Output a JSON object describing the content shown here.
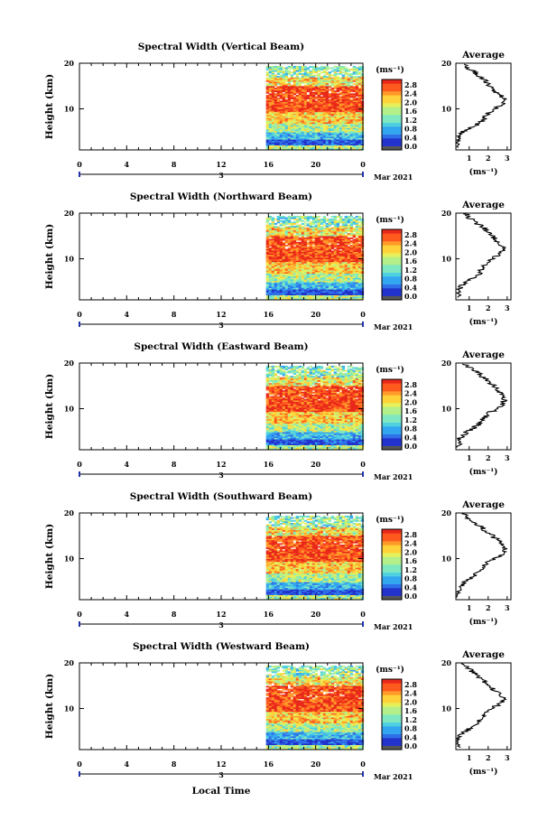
{
  "chart_data": [
    {
      "type": "heatmap",
      "title": "Spectral Width (Vertical Beam)",
      "ylabel": "Height (km)",
      "xticks": [
        "0",
        "4",
        "8",
        "12",
        "16",
        "20",
        "0"
      ],
      "yticks": [
        "10",
        "20"
      ],
      "ylim": [
        1,
        20
      ],
      "date_label": "3",
      "month_label": "Mar 2021",
      "colorbar_unit": "(ms⁻¹)",
      "colorbar_ticks": [
        "0.0",
        "0.4",
        "0.8",
        "1.2",
        "1.6",
        "2.0",
        "2.4",
        "2.8"
      ],
      "data_start_hour": 15.8,
      "data_end_hour": 24,
      "average": {
        "title": "Average",
        "xticks": [
          "1",
          "2",
          "3"
        ],
        "xlabel": "(ms⁻¹)",
        "yticks": [
          "10",
          "20"
        ],
        "x_at_height": [
          [
            1.5,
            0.45
          ],
          [
            3,
            0.42
          ],
          [
            4,
            0.5
          ],
          [
            5,
            0.7
          ],
          [
            6,
            1.2
          ],
          [
            7,
            1.6
          ],
          [
            8,
            1.8
          ],
          [
            9,
            2.0
          ],
          [
            10,
            2.3
          ],
          [
            11,
            2.7
          ],
          [
            12,
            2.9
          ],
          [
            13,
            2.6
          ],
          [
            14,
            2.3
          ],
          [
            15,
            2.1
          ],
          [
            16,
            1.9
          ],
          [
            17,
            1.6
          ],
          [
            18,
            1.3
          ],
          [
            19,
            0.9
          ],
          [
            20,
            0.7
          ]
        ]
      }
    },
    {
      "type": "heatmap",
      "title": "Spectral Width (Northward Beam)",
      "ylabel": "Height (km)",
      "xticks": [
        "0",
        "4",
        "8",
        "12",
        "16",
        "20",
        "0"
      ],
      "yticks": [
        "10",
        "20"
      ],
      "ylim": [
        1,
        20
      ],
      "date_label": "3",
      "month_label": "Mar 2021",
      "colorbar_unit": "(ms⁻¹)",
      "colorbar_ticks": [
        "0.0",
        "0.4",
        "0.8",
        "1.2",
        "1.6",
        "2.0",
        "2.4",
        "2.8"
      ],
      "data_start_hour": 15.8,
      "data_end_hour": 24,
      "average": {
        "title": "Average",
        "xticks": [
          "1",
          "2",
          "3"
        ],
        "xlabel": "(ms⁻¹)",
        "yticks": [
          "10",
          "20"
        ],
        "x_at_height": [
          [
            1.5,
            0.4
          ],
          [
            3,
            0.45
          ],
          [
            4,
            0.55
          ],
          [
            5,
            0.8
          ],
          [
            6,
            1.3
          ],
          [
            7,
            1.6
          ],
          [
            8,
            1.7
          ],
          [
            9,
            1.8
          ],
          [
            10,
            2.2
          ],
          [
            11,
            2.6
          ],
          [
            12,
            2.8
          ],
          [
            13,
            2.7
          ],
          [
            14,
            2.4
          ],
          [
            15,
            2.2
          ],
          [
            16,
            2.0
          ],
          [
            17,
            1.7
          ],
          [
            18,
            1.3
          ],
          [
            19,
            1.0
          ],
          [
            20,
            0.8
          ]
        ]
      }
    },
    {
      "type": "heatmap",
      "title": "Spectral Width (Eastward Beam)",
      "ylabel": "Height (km)",
      "xticks": [
        "0",
        "4",
        "8",
        "12",
        "16",
        "20",
        "0"
      ],
      "yticks": [
        "10",
        "20"
      ],
      "ylim": [
        1,
        20
      ],
      "date_label": "3",
      "month_label": "Mar 2021",
      "colorbar_unit": "(ms⁻¹)",
      "colorbar_ticks": [
        "0.0",
        "0.4",
        "0.8",
        "1.2",
        "1.6",
        "2.0",
        "2.4",
        "2.8"
      ],
      "data_start_hour": 15.8,
      "data_end_hour": 24,
      "average": {
        "title": "Average",
        "xticks": [
          "1",
          "2",
          "3"
        ],
        "xlabel": "(ms⁻¹)",
        "yticks": [
          "10",
          "20"
        ],
        "x_at_height": [
          [
            1.5,
            0.5
          ],
          [
            3,
            0.45
          ],
          [
            4,
            0.6
          ],
          [
            5,
            0.9
          ],
          [
            6,
            1.3
          ],
          [
            7,
            1.6
          ],
          [
            8,
            1.8
          ],
          [
            9,
            2.0
          ],
          [
            10,
            2.5
          ],
          [
            11,
            2.8
          ],
          [
            12,
            2.9
          ],
          [
            13,
            2.7
          ],
          [
            14,
            2.5
          ],
          [
            15,
            2.3
          ],
          [
            16,
            2.0
          ],
          [
            17,
            1.7
          ],
          [
            18,
            1.4
          ],
          [
            19,
            1.0
          ],
          [
            20,
            0.7
          ]
        ]
      }
    },
    {
      "type": "heatmap",
      "title": "Spectral Width (Southward Beam)",
      "ylabel": "Height (km)",
      "xticks": [
        "0",
        "4",
        "8",
        "12",
        "16",
        "20",
        "0"
      ],
      "yticks": [
        "10",
        "20"
      ],
      "ylim": [
        1,
        20
      ],
      "date_label": "3",
      "month_label": "Mar 2021",
      "colorbar_unit": "(ms⁻¹)",
      "colorbar_ticks": [
        "0.0",
        "0.4",
        "0.8",
        "1.2",
        "1.6",
        "2.0",
        "2.4",
        "2.8"
      ],
      "data_start_hour": 15.8,
      "data_end_hour": 24,
      "average": {
        "title": "Average",
        "xticks": [
          "1",
          "2",
          "3"
        ],
        "xlabel": "(ms⁻¹)",
        "yticks": [
          "10",
          "20"
        ],
        "x_at_height": [
          [
            1.5,
            0.4
          ],
          [
            3,
            0.45
          ],
          [
            4,
            0.55
          ],
          [
            5,
            0.8
          ],
          [
            6,
            1.2
          ],
          [
            7,
            1.5
          ],
          [
            8,
            1.7
          ],
          [
            9,
            1.9
          ],
          [
            10,
            2.3
          ],
          [
            11,
            2.7
          ],
          [
            12,
            2.9
          ],
          [
            13,
            2.8
          ],
          [
            14,
            2.5
          ],
          [
            15,
            2.2
          ],
          [
            16,
            1.9
          ],
          [
            17,
            1.6
          ],
          [
            18,
            1.2
          ],
          [
            19,
            0.9
          ],
          [
            20,
            0.6
          ]
        ]
      }
    },
    {
      "type": "heatmap",
      "title": "Spectral Width (Westward Beam)",
      "ylabel": "Height (km)",
      "xticks": [
        "0",
        "4",
        "8",
        "12",
        "16",
        "20",
        "0"
      ],
      "yticks": [
        "10",
        "20"
      ],
      "ylim": [
        1,
        20
      ],
      "date_label": "3",
      "month_label": "Mar 2021",
      "colorbar_unit": "(ms⁻¹)",
      "colorbar_ticks": [
        "0.0",
        "0.4",
        "0.8",
        "1.2",
        "1.6",
        "2.0",
        "2.4",
        "2.8"
      ],
      "data_start_hour": 15.8,
      "data_end_hour": 24,
      "average": {
        "title": "Average",
        "xticks": [
          "1",
          "2",
          "3"
        ],
        "xlabel": "(ms⁻¹)",
        "yticks": [
          "10",
          "20"
        ],
        "x_at_height": [
          [
            1.5,
            0.45
          ],
          [
            3,
            0.42
          ],
          [
            4,
            0.55
          ],
          [
            5,
            0.8
          ],
          [
            6,
            1.2
          ],
          [
            7,
            1.5
          ],
          [
            8,
            1.7
          ],
          [
            9,
            1.9
          ],
          [
            10,
            2.2
          ],
          [
            11,
            2.6
          ],
          [
            12,
            2.8
          ],
          [
            13,
            2.6
          ],
          [
            14,
            2.3
          ],
          [
            15,
            2.1
          ],
          [
            16,
            1.8
          ],
          [
            17,
            1.5
          ],
          [
            18,
            1.2
          ],
          [
            19,
            0.9
          ],
          [
            20,
            0.6
          ]
        ]
      }
    }
  ],
  "xlabel": "Local Time",
  "colormap": [
    "#1a1a6e",
    "#2233cc",
    "#2f6fe8",
    "#33a6f0",
    "#4fd0e0",
    "#7fe8c0",
    "#b4f08a",
    "#e6f05a",
    "#ffd23a",
    "#ff9a2a",
    "#ff5a1e",
    "#e8281a"
  ]
}
